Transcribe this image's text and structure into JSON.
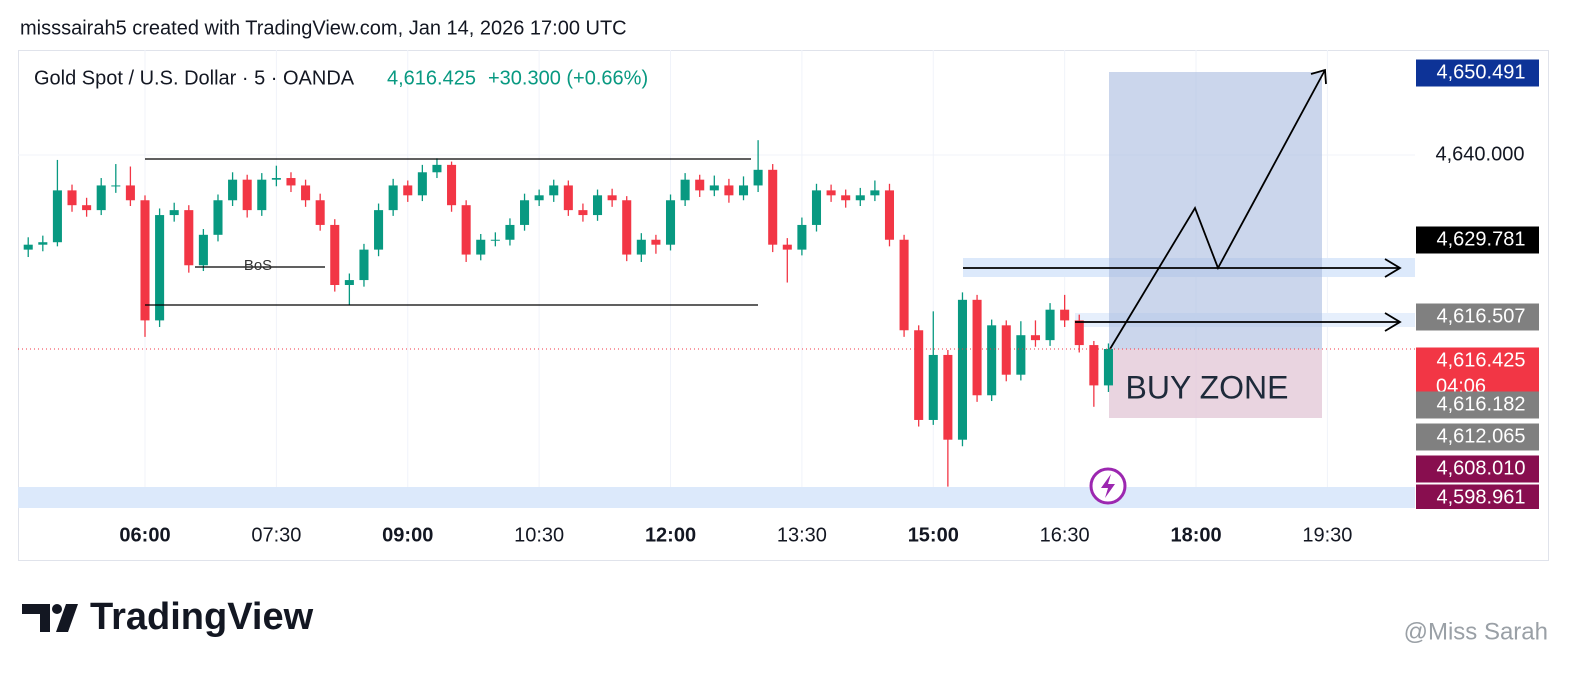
{
  "header": {
    "attribution": "misssairah5 created with TradingView.com, Jan 14, 2026 17:00 UTC"
  },
  "chart_data": {
    "type": "candlestick",
    "symbol": "Gold Spot / U.S. Dollar · 5 · OANDA",
    "last_price": "4,616.425",
    "change": "+30.300 (+0.66%)",
    "up_color": "#089981",
    "down_color": "#f23645",
    "x": [
      "04:40",
      "04:50",
      "05:00",
      "05:10",
      "05:20",
      "05:30",
      "05:40",
      "05:50",
      "06:00",
      "06:10",
      "06:20",
      "06:30",
      "06:40",
      "06:50",
      "07:00",
      "07:10",
      "07:20",
      "07:30",
      "07:40",
      "07:50",
      "08:00",
      "08:10",
      "08:20",
      "08:30",
      "08:40",
      "08:50",
      "09:00",
      "09:10",
      "09:20",
      "09:30",
      "09:40",
      "09:50",
      "10:00",
      "10:10",
      "10:20",
      "10:30",
      "10:40",
      "10:50",
      "11:00",
      "11:10",
      "11:20",
      "11:30",
      "11:40",
      "11:50",
      "12:00",
      "12:10",
      "12:20",
      "12:30",
      "12:40",
      "12:50",
      "13:00",
      "13:10",
      "13:20",
      "13:30",
      "13:40",
      "13:50",
      "14:00",
      "14:10",
      "14:20",
      "14:30",
      "14:40",
      "14:50",
      "15:00",
      "15:10",
      "15:20",
      "15:30",
      "15:40",
      "15:50",
      "16:00",
      "16:10",
      "16:20",
      "16:30",
      "16:40",
      "16:50",
      "17:00"
    ],
    "open": [
      4628.5,
      4629.1,
      4629.4,
      4635.7,
      4633.9,
      4633.3,
      4636.3,
      4636.3,
      4634.5,
      4619.9,
      4632.7,
      4633.3,
      4626.6,
      4630.3,
      4634.5,
      4637.0,
      4633.3,
      4637.0,
      4637.2,
      4636.3,
      4634.5,
      4631.5,
      4624.2,
      4624.8,
      4628.5,
      4633.3,
      4636.3,
      4635.1,
      4637.9,
      4638.8,
      4633.9,
      4627.9,
      4629.7,
      4629.7,
      4631.5,
      4634.5,
      4635.1,
      4636.3,
      4633.3,
      4632.7,
      4635.1,
      4634.5,
      4627.9,
      4629.7,
      4629.1,
      4634.5,
      4637.0,
      4635.7,
      4636.3,
      4635.1,
      4636.3,
      4638.2,
      4629.1,
      4628.5,
      4631.5,
      4635.7,
      4635.1,
      4634.5,
      4635.1,
      4635.7,
      4629.7,
      4618.7,
      4607.8,
      4615.7,
      4605.4,
      4622.4,
      4610.8,
      4619.3,
      4613.3,
      4618.1,
      4617.5,
      4621.2,
      4619.9,
      4616.9,
      4612.0
    ],
    "high": [
      4630.0,
      4630.2,
      4639.4,
      4636.4,
      4634.8,
      4637.2,
      4638.9,
      4638.6,
      4635.1,
      4633.5,
      4634.2,
      4633.9,
      4631.0,
      4635.2,
      4637.9,
      4637.6,
      4637.8,
      4638.7,
      4637.9,
      4637.0,
      4635.3,
      4632.2,
      4625.6,
      4629.2,
      4634.1,
      4637.1,
      4636.9,
      4638.8,
      4639.6,
      4639.2,
      4634.5,
      4630.4,
      4630.6,
      4632.3,
      4635.3,
      4635.8,
      4637.0,
      4636.9,
      4634.1,
      4635.8,
      4635.9,
      4635.0,
      4630.5,
      4630.3,
      4635.2,
      4637.8,
      4637.6,
      4637.5,
      4637.1,
      4637.4,
      4641.8,
      4638.9,
      4629.9,
      4632.4,
      4636.5,
      4636.4,
      4635.8,
      4636.0,
      4636.9,
      4636.5,
      4630.3,
      4619.3,
      4621.0,
      4616.3,
      4623.3,
      4623.0,
      4620.0,
      4619.9,
      4619.8,
      4619.9,
      4622.0,
      4623.0,
      4620.6,
      4617.4,
      4617.1
    ],
    "low": [
      4627.6,
      4628.3,
      4628.9,
      4633.1,
      4632.5,
      4632.7,
      4635.4,
      4633.8,
      4617.9,
      4619.1,
      4631.9,
      4625.7,
      4625.9,
      4629.5,
      4633.8,
      4632.4,
      4632.6,
      4636.2,
      4635.5,
      4633.7,
      4630.8,
      4623.4,
      4621.8,
      4624.0,
      4627.7,
      4632.6,
      4634.3,
      4634.4,
      4637.2,
      4633.1,
      4627.0,
      4627.2,
      4628.9,
      4629.0,
      4630.8,
      4633.8,
      4634.3,
      4632.6,
      4631.9,
      4632.0,
      4633.7,
      4627.1,
      4627.0,
      4628.0,
      4628.4,
      4633.8,
      4634.9,
      4635.0,
      4634.2,
      4634.5,
      4635.5,
      4628.2,
      4624.5,
      4627.8,
      4630.7,
      4634.3,
      4633.6,
      4633.8,
      4634.4,
      4628.9,
      4617.9,
      4607.0,
      4607.2,
      4599.7,
      4604.6,
      4610.0,
      4610.1,
      4612.5,
      4612.6,
      4616.7,
      4616.8,
      4619.1,
      4616.0,
      4609.4,
      4611.2
    ],
    "close": [
      4629.1,
      4629.4,
      4635.7,
      4633.9,
      4633.3,
      4636.3,
      4636.3,
      4634.5,
      4619.9,
      4632.7,
      4633.3,
      4626.6,
      4630.3,
      4634.5,
      4637.0,
      4633.3,
      4637.0,
      4637.2,
      4636.3,
      4634.5,
      4631.5,
      4624.2,
      4624.8,
      4628.5,
      4633.3,
      4636.3,
      4635.1,
      4637.9,
      4638.8,
      4633.9,
      4627.9,
      4629.7,
      4629.7,
      4631.5,
      4634.5,
      4635.1,
      4636.3,
      4633.3,
      4632.7,
      4635.1,
      4634.5,
      4627.9,
      4629.7,
      4629.1,
      4634.5,
      4637.0,
      4635.7,
      4636.3,
      4635.1,
      4636.3,
      4638.2,
      4629.1,
      4628.5,
      4631.5,
      4635.7,
      4635.1,
      4634.5,
      4635.1,
      4635.7,
      4629.7,
      4618.7,
      4607.8,
      4615.7,
      4605.4,
      4622.4,
      4610.8,
      4619.3,
      4613.3,
      4618.1,
      4617.5,
      4621.2,
      4619.9,
      4616.9,
      4612.0,
      4616.425
    ],
    "xlim": [
      "04:33",
      "20:30"
    ],
    "xticks": [
      "06:00",
      "07:30",
      "09:00",
      "10:30",
      "12:00",
      "13:30",
      "15:00",
      "16:30",
      "18:00",
      "19:30"
    ],
    "ylim": [
      4597.1,
      4652.76
    ],
    "yticks": [
      {
        "value": 4640,
        "label": "4,640.000"
      }
    ],
    "price_labels": [
      {
        "value": 4650.491,
        "label": "4,650.491",
        "color": "#0d3397"
      },
      {
        "value": 4629.781,
        "label": "4,629.781",
        "color": "#000000"
      },
      {
        "value": 4616.507,
        "label": "4,616.507",
        "color": "#808080"
      },
      {
        "value": 4616.425,
        "label": "4,616.425",
        "countdown": "04:06",
        "color": "#f23645"
      },
      {
        "value": 4616.182,
        "label": "4,616.182",
        "color": "#808080"
      },
      {
        "value": 4612.065,
        "label": "4,612.065",
        "color": "#808080"
      },
      {
        "value": 4608.01,
        "label": "4,608.010",
        "color": "#880e4f"
      },
      {
        "value": 4598.961,
        "label": "4,598.961",
        "color": "#880e4f"
      }
    ],
    "annotations": [
      "BoS",
      "BUY ZONE"
    ]
  },
  "footer": {
    "logo": "TradingView",
    "watermark": "@Miss Sarah"
  }
}
